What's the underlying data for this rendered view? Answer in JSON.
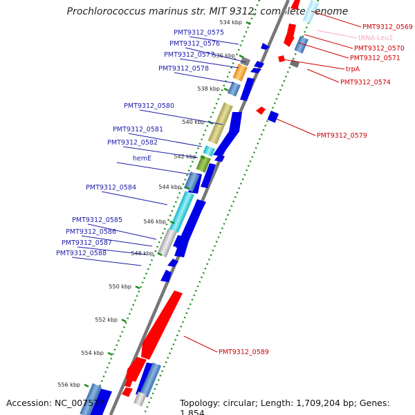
{
  "title": "Prochlorococcus marinus str. MIT 9312, complete genome",
  "footer": {
    "accession": "Accession: NC_007577",
    "summary": "Topology: circular; Length: 1,709,204 bp; Genes: 1,854"
  },
  "colors": {
    "forward_cds": "#0000e6",
    "reverse_cds": "#ff0000",
    "forward_label": "#1a1aa8",
    "reverse_label": "#cc0000",
    "trna": "#f7a8c0",
    "tick": "#1a8c1a",
    "backbone": "#777777"
  },
  "ticks": [
    "534 kbp",
    "536 kbp",
    "538 kbp",
    "540 kbp",
    "542 kbp",
    "544 kbp",
    "546 kbp",
    "548 kbp",
    "550 kbp",
    "552 kbp",
    "554 kbp",
    "556 kbp"
  ],
  "forward_genes": [
    {
      "label": "PMT9312_0575"
    },
    {
      "label": "PMT9312_0576"
    },
    {
      "label": "PMT9312_0577"
    },
    {
      "label": "PMT9312_0578"
    },
    {
      "label": "PMT9312_0580"
    },
    {
      "label": "PMT9312_0581"
    },
    {
      "label": "PMT9312_0582"
    },
    {
      "label": "hemE"
    },
    {
      "label": "PMT9312_0584"
    },
    {
      "label": "PMT9312_0585"
    },
    {
      "label": "PMT9312_0586"
    },
    {
      "label": "PMT9312_0587"
    },
    {
      "label": "PMT9312_0588"
    }
  ],
  "reverse_genes": [
    {
      "label": "PMT9312_0569"
    },
    {
      "label": "tRNA-Leu2"
    },
    {
      "label": "PMT9312_0570"
    },
    {
      "label": "PMT9312_0571"
    },
    {
      "label": "trpA"
    },
    {
      "label": "PMT9312_0574"
    },
    {
      "label": "PMT9312_0579"
    },
    {
      "label": "PMT9312_0589"
    }
  ]
}
